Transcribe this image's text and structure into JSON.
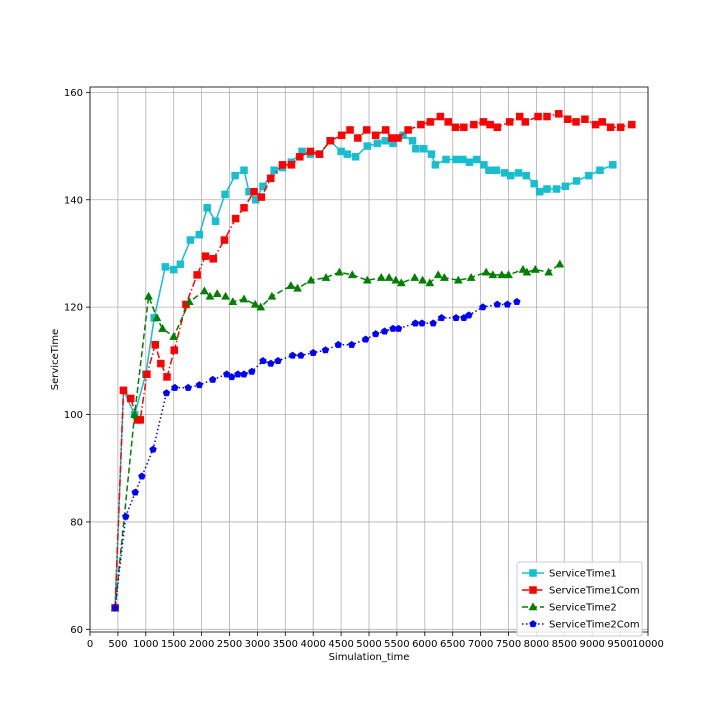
{
  "chart_data": {
    "type": "line",
    "xlabel": "Simulation_time",
    "ylabel": "ServiceTime",
    "xlim": [
      0,
      10000
    ],
    "ylim": [
      59.5,
      161
    ],
    "x_ticks": [
      0,
      500,
      1000,
      1500,
      2000,
      2500,
      3000,
      3500,
      4000,
      4500,
      5000,
      5500,
      6000,
      6500,
      7000,
      7500,
      8000,
      8500,
      9000,
      9500,
      10000
    ],
    "y_ticks": [
      60,
      80,
      100,
      120,
      140,
      160
    ],
    "grid": true,
    "legend_position": "lower-right",
    "series": [
      {
        "name": "ServiceTime1",
        "color": "#17becf",
        "dash": "solid",
        "marker": "square",
        "points": [
          [
            450,
            64
          ],
          [
            600,
            104.5
          ],
          [
            800,
            100
          ],
          [
            1000,
            107.5
          ],
          [
            1150,
            118
          ],
          [
            1350,
            127.5
          ],
          [
            1500,
            127
          ],
          [
            1620,
            128
          ],
          [
            1800,
            132.5
          ],
          [
            1960,
            133.5
          ],
          [
            2100,
            138.5
          ],
          [
            2250,
            136
          ],
          [
            2420,
            141
          ],
          [
            2600,
            144.5
          ],
          [
            2760,
            145.5
          ],
          [
            2850,
            141.5
          ],
          [
            2970,
            140
          ],
          [
            3100,
            142.5
          ],
          [
            3300,
            145.5
          ],
          [
            3450,
            146
          ],
          [
            3610,
            147
          ],
          [
            3800,
            149
          ],
          [
            3950,
            148.5
          ],
          [
            4120,
            148.5
          ],
          [
            4300,
            151
          ],
          [
            4500,
            149
          ],
          [
            4610,
            148.5
          ],
          [
            4760,
            148
          ],
          [
            4970,
            150
          ],
          [
            5150,
            150.5
          ],
          [
            5290,
            151
          ],
          [
            5430,
            150.5
          ],
          [
            5610,
            152
          ],
          [
            5780,
            151
          ],
          [
            5840,
            149.5
          ],
          [
            5980,
            149.5
          ],
          [
            6120,
            148.5
          ],
          [
            6190,
            146.5
          ],
          [
            6380,
            147.5
          ],
          [
            6560,
            147.5
          ],
          [
            6680,
            147.5
          ],
          [
            6800,
            147
          ],
          [
            6930,
            147.5
          ],
          [
            7060,
            146.5
          ],
          [
            7150,
            145.5
          ],
          [
            7280,
            145.5
          ],
          [
            7430,
            145
          ],
          [
            7540,
            144.5
          ],
          [
            7680,
            145
          ],
          [
            7820,
            144.5
          ],
          [
            7960,
            143
          ],
          [
            8060,
            141.5
          ],
          [
            8190,
            142
          ],
          [
            8360,
            142
          ],
          [
            8520,
            142.5
          ],
          [
            8720,
            143.5
          ],
          [
            8940,
            144.5
          ],
          [
            9140,
            145.5
          ],
          [
            9370,
            146.5
          ]
        ]
      },
      {
        "name": "ServiceTime1Com",
        "color": "#ff0000",
        "dash": "dashdot",
        "marker": "square",
        "points": [
          [
            450,
            64
          ],
          [
            600,
            104.5
          ],
          [
            730,
            103
          ],
          [
            850,
            99
          ],
          [
            900,
            99
          ],
          [
            1020,
            107.5
          ],
          [
            1170,
            113
          ],
          [
            1270,
            109.5
          ],
          [
            1380,
            107
          ],
          [
            1510,
            112
          ],
          [
            1720,
            120.5
          ],
          [
            1920,
            126
          ],
          [
            2070,
            129.5
          ],
          [
            2210,
            129
          ],
          [
            2410,
            132.5
          ],
          [
            2610,
            136.5
          ],
          [
            2760,
            138.5
          ],
          [
            2940,
            141.5
          ],
          [
            3070,
            140.5
          ],
          [
            3240,
            144
          ],
          [
            3450,
            146.5
          ],
          [
            3610,
            146.5
          ],
          [
            3760,
            148
          ],
          [
            3950,
            149
          ],
          [
            4110,
            148.5
          ],
          [
            4310,
            151
          ],
          [
            4510,
            152
          ],
          [
            4660,
            153
          ],
          [
            4800,
            151.5
          ],
          [
            4960,
            153
          ],
          [
            5120,
            152
          ],
          [
            5300,
            153
          ],
          [
            5410,
            151.5
          ],
          [
            5520,
            151.5
          ],
          [
            5700,
            153
          ],
          [
            5930,
            154
          ],
          [
            6100,
            154.5
          ],
          [
            6280,
            155.5
          ],
          [
            6420,
            154.5
          ],
          [
            6550,
            153.5
          ],
          [
            6700,
            153.5
          ],
          [
            6880,
            154
          ],
          [
            7050,
            154.5
          ],
          [
            7170,
            154
          ],
          [
            7300,
            153.5
          ],
          [
            7520,
            154.5
          ],
          [
            7700,
            155.5
          ],
          [
            7800,
            154.5
          ],
          [
            8030,
            155.5
          ],
          [
            8190,
            155.5
          ],
          [
            8400,
            156
          ],
          [
            8560,
            155
          ],
          [
            8710,
            154.5
          ],
          [
            8870,
            155
          ],
          [
            9060,
            154
          ],
          [
            9180,
            154.5
          ],
          [
            9330,
            153.5
          ],
          [
            9510,
            153.5
          ],
          [
            9710,
            154
          ]
        ]
      },
      {
        "name": "ServiceTime2",
        "color": "#008000",
        "dash": "dashed",
        "marker": "triangle",
        "points": [
          [
            450,
            64
          ],
          [
            800,
            100
          ],
          [
            1050,
            122
          ],
          [
            1200,
            118
          ],
          [
            1300,
            116
          ],
          [
            1500,
            114.5
          ],
          [
            1780,
            121
          ],
          [
            2050,
            123
          ],
          [
            2150,
            122
          ],
          [
            2280,
            122.5
          ],
          [
            2430,
            122
          ],
          [
            2560,
            121
          ],
          [
            2760,
            121.5
          ],
          [
            2960,
            120.5
          ],
          [
            3060,
            120
          ],
          [
            3260,
            122
          ],
          [
            3600,
            124
          ],
          [
            3720,
            123.5
          ],
          [
            3960,
            125
          ],
          [
            4230,
            125.5
          ],
          [
            4470,
            126.5
          ],
          [
            4700,
            126
          ],
          [
            4970,
            125
          ],
          [
            5220,
            125.5
          ],
          [
            5360,
            125.5
          ],
          [
            5480,
            125
          ],
          [
            5580,
            124.5
          ],
          [
            5820,
            125.5
          ],
          [
            5960,
            125
          ],
          [
            6090,
            124.5
          ],
          [
            6240,
            126
          ],
          [
            6350,
            125.5
          ],
          [
            6600,
            125
          ],
          [
            6830,
            125.5
          ],
          [
            7100,
            126.5
          ],
          [
            7220,
            126
          ],
          [
            7380,
            126
          ],
          [
            7500,
            126
          ],
          [
            7760,
            127
          ],
          [
            7830,
            126.5
          ],
          [
            7980,
            127
          ],
          [
            8220,
            126.5
          ],
          [
            8420,
            128
          ]
        ]
      },
      {
        "name": "ServiceTime2Com",
        "color": "#0000ff",
        "dash": "dotted",
        "marker": "pentagon",
        "points": [
          [
            450,
            64
          ],
          [
            640,
            81
          ],
          [
            810,
            85.5
          ],
          [
            930,
            88.5
          ],
          [
            1130,
            93.5
          ],
          [
            1370,
            104
          ],
          [
            1520,
            105
          ],
          [
            1760,
            105
          ],
          [
            1960,
            105.5
          ],
          [
            2200,
            106.5
          ],
          [
            2450,
            107.5
          ],
          [
            2540,
            107
          ],
          [
            2650,
            107.5
          ],
          [
            2760,
            107.5
          ],
          [
            2900,
            108
          ],
          [
            3100,
            110
          ],
          [
            3240,
            109.5
          ],
          [
            3370,
            110
          ],
          [
            3630,
            111
          ],
          [
            3780,
            111
          ],
          [
            4000,
            111.5
          ],
          [
            4220,
            112
          ],
          [
            4450,
            113
          ],
          [
            4690,
            113
          ],
          [
            4940,
            114
          ],
          [
            5120,
            115
          ],
          [
            5280,
            115.5
          ],
          [
            5430,
            116
          ],
          [
            5530,
            116
          ],
          [
            5830,
            117
          ],
          [
            5950,
            117
          ],
          [
            6150,
            117
          ],
          [
            6300,
            118
          ],
          [
            6560,
            118
          ],
          [
            6700,
            118
          ],
          [
            6790,
            118.5
          ],
          [
            7040,
            120
          ],
          [
            7300,
            120.5
          ],
          [
            7480,
            120.5
          ],
          [
            7650,
            121
          ]
        ]
      }
    ]
  }
}
